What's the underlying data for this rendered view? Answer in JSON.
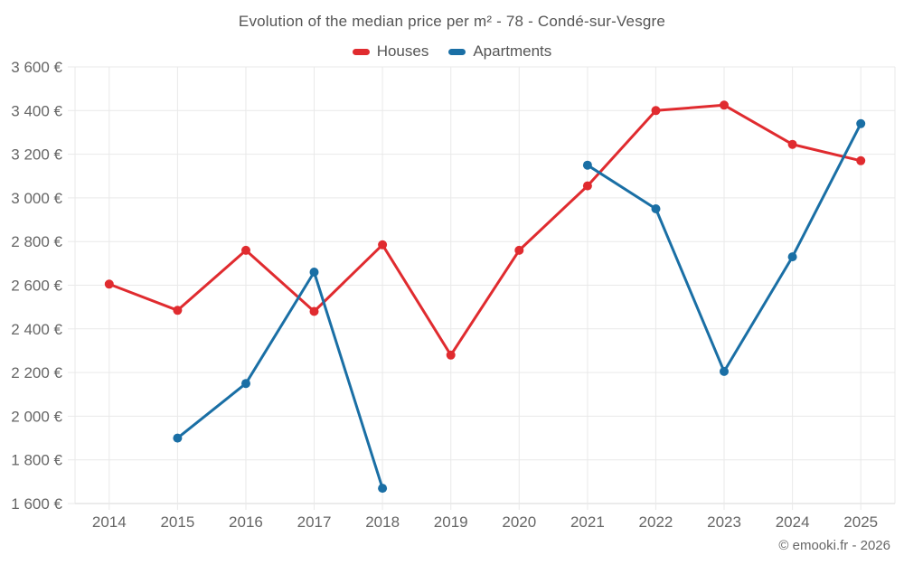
{
  "footer": {
    "credit": "© emooki.fr - 2026"
  },
  "theme": {
    "houses_color": "#e02b2f",
    "apartments_color": "#1a6fa5",
    "grid_color": "#e9e9e9",
    "axis_color": "#d7d7d7",
    "tick_text_color": "#666666",
    "title_text_color": "#555555"
  },
  "chart_data": {
    "type": "line",
    "title": "Evolution of the median price per m² - 78 - Condé-sur-Vesgre",
    "x": [
      "2014",
      "2015",
      "2016",
      "2017",
      "2018",
      "2019",
      "2020",
      "2021",
      "2022",
      "2023",
      "2024",
      "2025"
    ],
    "series": [
      {
        "name": "Houses",
        "color": "#e02b2f",
        "values": [
          2605,
          2485,
          2760,
          2480,
          2785,
          2280,
          2760,
          3055,
          3400,
          3425,
          3245,
          3170
        ]
      },
      {
        "name": "Apartments",
        "color": "#1a6fa5",
        "values": [
          null,
          1900,
          2150,
          2660,
          1670,
          null,
          null,
          3150,
          2950,
          2205,
          2730,
          3340
        ]
      }
    ],
    "ylim": [
      1600,
      3600
    ],
    "ytick_step": 200,
    "ytick_suffix": " €",
    "grid": true,
    "legend_position": "top",
    "xlabel": "",
    "ylabel": ""
  }
}
